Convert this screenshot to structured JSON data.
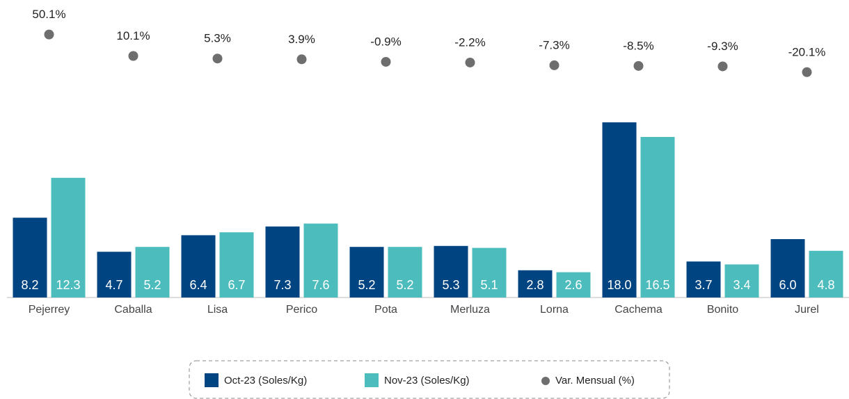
{
  "chart_data": {
    "type": "bar",
    "categories": [
      "Pejerrey",
      "Caballa",
      "Lisa",
      "Perico",
      "Pota",
      "Merluza",
      "Lorna",
      "Cachema",
      "Bonito",
      "Jurel"
    ],
    "series": [
      {
        "name": "Oct-23 (Soles/Kg)",
        "color": "#004481",
        "values": [
          8.2,
          4.7,
          6.4,
          7.3,
          5.2,
          5.3,
          2.8,
          18.0,
          3.7,
          6.0
        ],
        "value_labels": [
          "8.2",
          "4.7",
          "6.4",
          "7.3",
          "5.2",
          "5.3",
          "2.8",
          "18.0",
          "3.7",
          "6.0"
        ]
      },
      {
        "name": "Nov-23 (Soles/Kg)",
        "color": "#4dbcbd",
        "values": [
          12.3,
          5.2,
          6.7,
          7.6,
          5.2,
          5.1,
          2.6,
          16.5,
          3.4,
          4.8
        ],
        "value_labels": [
          "12.3",
          "5.2",
          "6.7",
          "7.6",
          "5.2",
          "5.1",
          "2.6",
          "16.5",
          "3.4",
          "4.8"
        ]
      },
      {
        "name": "Var. Mensual (%)",
        "color": "#6e6e6e",
        "type": "scatter",
        "axis": "y2",
        "values": [
          50.1,
          10.1,
          5.3,
          3.9,
          -0.9,
          -2.2,
          -7.3,
          -8.5,
          -9.3,
          -20.1
        ],
        "value_labels": [
          "50.1%",
          "10.1%",
          "5.3%",
          "3.9%",
          "-0.9%",
          "-2.2%",
          "-7.3%",
          "-8.5%",
          "-9.3%",
          "-20.1%"
        ]
      }
    ],
    "ylim": [
      0,
      18
    ],
    "y2lim": [
      -80,
      60
    ],
    "legend": "bottom"
  }
}
